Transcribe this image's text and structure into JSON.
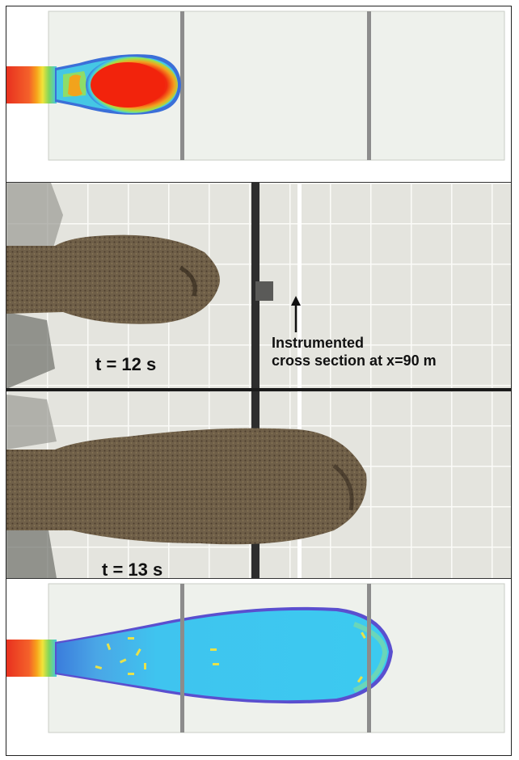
{
  "labels": {
    "t_first": "t = 12 s",
    "t_second": "t = 13 s",
    "annotation_line1": "Instrumented",
    "annotation_line2": "cross section at x=90 m"
  },
  "colors": {
    "simulation_background": "#eef1ec",
    "flume_divider": "#8c8c8c",
    "debris_flow": "#6a5a45",
    "flume_floor": "#e4e4de",
    "grid_lines": "#ffffff",
    "colormap": [
      "#e8311f",
      "#f7a21b",
      "#f2e33a",
      "#45c7e4",
      "#2b6fd8",
      "#6a3fc1"
    ]
  },
  "panels": [
    {
      "name": "simulation-top",
      "description_shape": "flow-front-early",
      "dominant_color": "#ef3a14"
    },
    {
      "name": "photograph",
      "views": 2
    },
    {
      "name": "simulation-bottom",
      "description_shape": "flow-front-late",
      "dominant_color": "#37c6ef"
    }
  ]
}
